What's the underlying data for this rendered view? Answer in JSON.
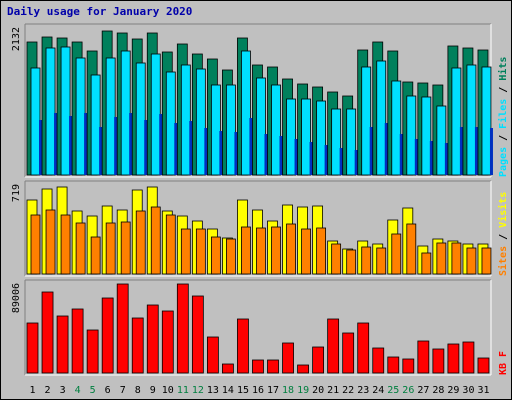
{
  "chart_data": {
    "type": "bar",
    "title": "Daily usage for January 2020",
    "days": [
      "1",
      "2",
      "3",
      "4",
      "5",
      "6",
      "7",
      "8",
      "9",
      "10",
      "11",
      "12",
      "13",
      "14",
      "15",
      "16",
      "17",
      "18",
      "19",
      "20",
      "21",
      "22",
      "23",
      "24",
      "25",
      "26",
      "27",
      "28",
      "29",
      "30",
      "31"
    ],
    "weekend_days": [
      "4",
      "5",
      "11",
      "12",
      "18",
      "19",
      "25",
      "26"
    ],
    "panels": [
      {
        "name": "requests",
        "max_label": "2132",
        "ymax": 2132,
        "side_label_parts": [
          "Pages",
          " / ",
          "Files",
          " / ",
          "Hits"
        ],
        "series": [
          {
            "name": "Hits",
            "color": "#00805c",
            "values": [
              1930,
              2000,
              1980,
              1930,
              1800,
              2090,
              2060,
              1970,
              2060,
              1780,
              1900,
              1760,
              1680,
              1520,
              1990,
              1600,
              1570,
              1390,
              1320,
              1280,
              1200,
              1150,
              1820,
              1930,
              1800,
              1350,
              1330,
              1300,
              1870,
              1840,
              1820
            ]
          },
          {
            "name": "Files",
            "color": "#00e0ff",
            "values": [
              1550,
              1840,
              1850,
              1700,
              1450,
              1700,
              1800,
              1620,
              1750,
              1500,
              1600,
              1540,
              1300,
              1300,
              1800,
              1400,
              1300,
              1100,
              1100,
              1070,
              950,
              960,
              1560,
              1650,
              1360,
              1140,
              1130,
              1000,
              1550,
              1600,
              1560
            ]
          },
          {
            "name": "Pages",
            "color": "#0030c0",
            "values": [
              800,
              900,
              860,
              900,
              700,
              840,
              900,
              800,
              880,
              760,
              780,
              680,
              640,
              620,
              820,
              600,
              560,
              520,
              480,
              440,
              390,
              360,
              700,
              760,
              600,
              520,
              500,
              460,
              700,
              700,
              680
            ]
          }
        ]
      },
      {
        "name": "visitors",
        "max_label": "719",
        "ymax": 719,
        "side_label_parts": [
          "Sites",
          " / ",
          "Visits"
        ],
        "series": [
          {
            "name": "Visits",
            "color": "#ffff00",
            "values": [
              600,
              690,
              704,
              510,
              465,
              550,
              520,
              680,
              700,
              510,
              470,
              430,
              360,
              290,
              600,
              520,
              430,
              560,
              540,
              550,
              270,
              200,
              270,
              240,
              440,
              530,
              230,
              280,
              270,
              240,
              240
            ]
          },
          {
            "name": "Sites",
            "color": "#ff8000",
            "values": [
              480,
              520,
              480,
              410,
              300,
              410,
              420,
              510,
              540,
              480,
              360,
              360,
              300,
              280,
              380,
              370,
              380,
              400,
              360,
              370,
              240,
              190,
              220,
              210,
              320,
              400,
              170,
              250,
              250,
              210,
              210
            ]
          }
        ]
      },
      {
        "name": "volume",
        "max_label": "89006",
        "ymax": 89006,
        "side_label_parts": [
          "KB F"
        ],
        "series": [
          {
            "name": "KB F",
            "color": "#ff0000",
            "values": [
              49800,
              80700,
              56700,
              63600,
              42900,
              74900,
              89000,
              55500,
              67900,
              62300,
              89000,
              77000,
              36500,
              9000,
              53900,
              13500,
              13000,
              30000,
              8300,
              26500,
              53700,
              40500,
              50000,
              25000,
              15600,
              14500,
              32000,
              24500,
              29500,
              31300,
              14700
            ]
          }
        ]
      }
    ]
  }
}
